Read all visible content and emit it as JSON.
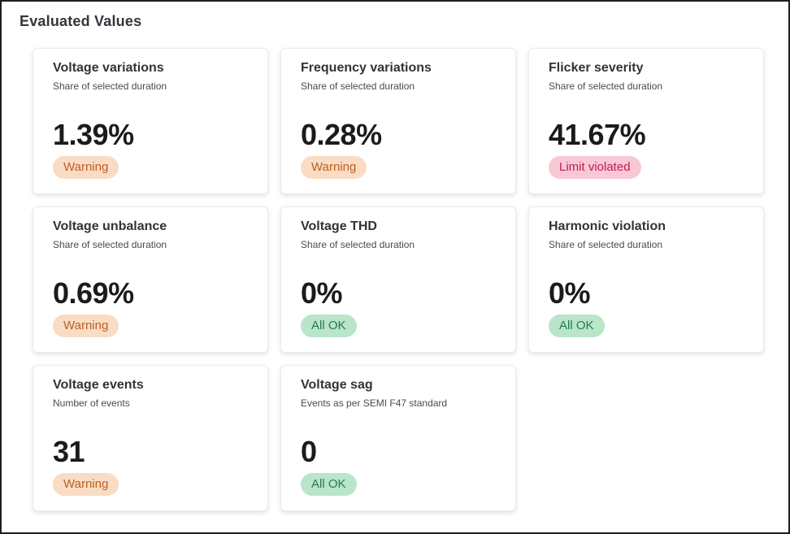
{
  "page": {
    "title": "Evaluated Values"
  },
  "colors": {
    "warning_bg": "#f9dcc3",
    "warning_text": "#bc5f25",
    "danger_bg": "#f8c9d5",
    "danger_text": "#c2185b",
    "ok_bg": "#b9e5c9",
    "ok_text": "#27785a"
  },
  "cards": [
    {
      "title": "Voltage variations",
      "subtitle": "Share of selected duration",
      "value": "1.39%",
      "status": "Warning",
      "status_type": "warning"
    },
    {
      "title": "Frequency variations",
      "subtitle": "Share of selected duration",
      "value": "0.28%",
      "status": "Warning",
      "status_type": "warning"
    },
    {
      "title": "Flicker severity",
      "subtitle": "Share of selected duration",
      "value": "41.67%",
      "status": "Limit violated",
      "status_type": "danger"
    },
    {
      "title": "Voltage unbalance",
      "subtitle": "Share of selected duration",
      "value": "0.69%",
      "status": "Warning",
      "status_type": "warning"
    },
    {
      "title": "Voltage THD",
      "subtitle": "Share of selected duration",
      "value": "0%",
      "status": "All OK",
      "status_type": "ok"
    },
    {
      "title": "Harmonic violation",
      "subtitle": "Share of selected duration",
      "value": "0%",
      "status": "All OK",
      "status_type": "ok"
    },
    {
      "title": "Voltage events",
      "subtitle": "Number of events",
      "value": "31",
      "status": "Warning",
      "status_type": "warning"
    },
    {
      "title": "Voltage sag",
      "subtitle": "Events as per SEMI F47 standard",
      "value": "0",
      "status": "All OK",
      "status_type": "ok"
    }
  ]
}
